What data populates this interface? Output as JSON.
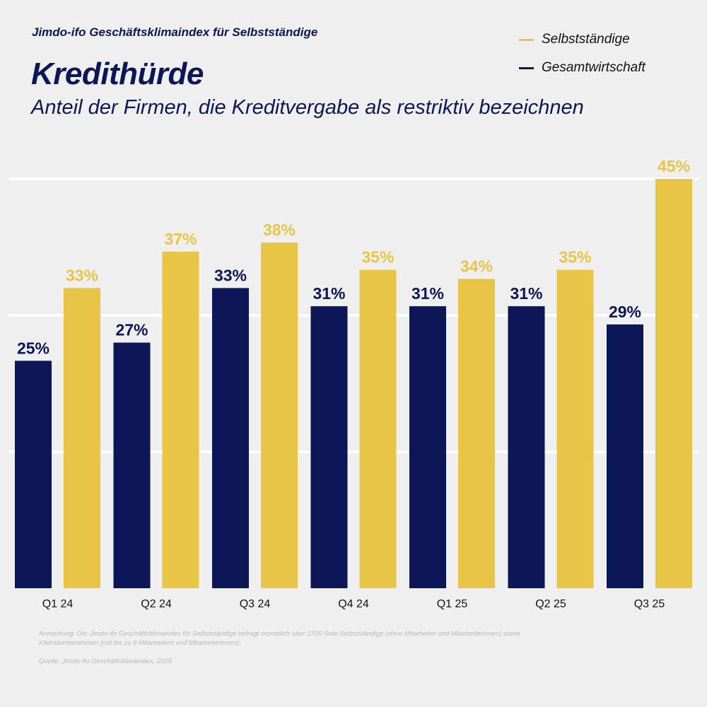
{
  "header": {
    "kicker": "Jimdo-ifo Geschäftsklimaindex für Selbstständige",
    "title": "Kredithürde",
    "subtitle": "Anteil der Firmen, die Kreditvergabe als restriktiv bezeichnen"
  },
  "legend": [
    {
      "label": "Selbstständige",
      "color": "#e8c547"
    },
    {
      "label": "Gesamtwirtschaft",
      "color": "#0d1656"
    }
  ],
  "footer": {
    "note": "Anmerkung: Der Jimdo-ifo Geschäftsklimaindex für Selbstständige befragt monatlich über 1700 Solo-Selbstständige (ohne Mitarbeiter und Mitarbeiterinnen) sowie Kleinstunternehmen (mit bis zu 9 Mitarbeitern und Mitarbeiterinnen).",
    "source": "Quelle: Jimdo-ifo Geschäftsklimaindex, 2025"
  },
  "chart_data": {
    "type": "bar",
    "title": "Kredithürde",
    "subtitle": "Anteil der Firmen, die Kreditvergabe als restriktiv bezeichnen",
    "categories": [
      "Q1 24",
      "Q2 24",
      "Q3 24",
      "Q4 24",
      "Q1 25",
      "Q2 25",
      "Q3 25"
    ],
    "series": [
      {
        "name": "Gesamtwirtschaft",
        "color": "#0d1656",
        "values": [
          25,
          27,
          33,
          31,
          31,
          31,
          29
        ]
      },
      {
        "name": "Selbstständige",
        "color": "#e8c547",
        "values": [
          33,
          37,
          38,
          35,
          34,
          35,
          45
        ]
      }
    ],
    "value_suffix": "%",
    "xlabel": "",
    "ylabel": "",
    "ylim": [
      0,
      45
    ],
    "gridlines": [
      15,
      30,
      45
    ],
    "grid": true,
    "y_tick_labels_shown": false,
    "legend_position": "top-right"
  }
}
